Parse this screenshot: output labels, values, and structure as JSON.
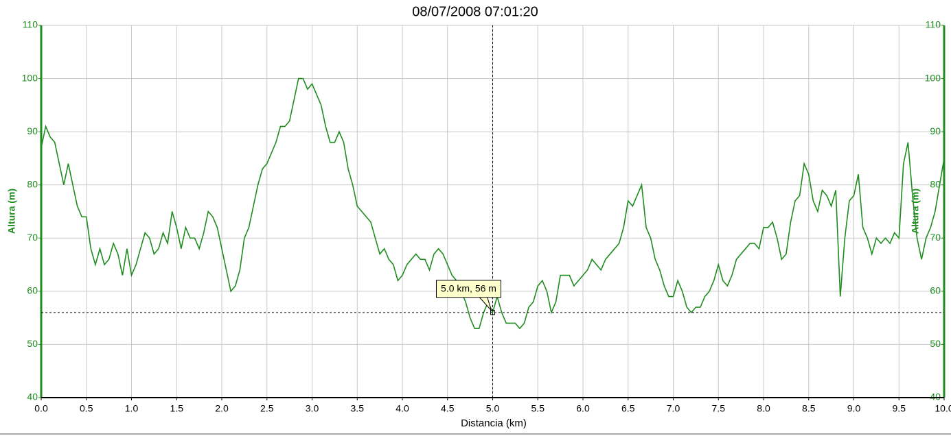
{
  "chart_data": {
    "type": "line",
    "title": "08/07/2008 07:01:20",
    "x_label": "Distancia (km)",
    "y_label": "Altura (m)",
    "y2_label": "Altura (m)",
    "xlim": [
      0,
      10
    ],
    "ylim": [
      40,
      110
    ],
    "y2lim": [
      40,
      110
    ],
    "grid": true,
    "xticks": [
      {
        "value": 0,
        "label": "0.0"
      },
      0.5,
      {
        "value": 1,
        "label": "1.0"
      },
      1.5,
      {
        "value": 2,
        "label": "2.0"
      },
      2.5,
      {
        "value": 3,
        "label": "3.0"
      },
      3.5,
      {
        "value": 4,
        "label": "4.0"
      },
      4.5,
      {
        "value": 5,
        "label": "5.0"
      },
      5.5,
      {
        "value": 6,
        "label": "6.0"
      },
      6.5,
      {
        "value": 7,
        "label": "7.0"
      },
      7.5,
      {
        "value": 8,
        "label": "8.0"
      },
      8.5,
      {
        "value": 9,
        "label": "9.0"
      },
      9.5,
      {
        "value": 10,
        "label": "10.0"
      }
    ],
    "yticks": [
      40,
      50,
      60,
      70,
      80,
      90,
      100,
      110
    ],
    "y2ticks": [
      40,
      50,
      60,
      70,
      80,
      90,
      100,
      110
    ],
    "axis_color": "#1e8c1e",
    "series": [
      {
        "name": "Altura",
        "color": "#1e8c1e",
        "x": [
          0,
          0.05,
          0.1,
          0.15,
          0.2,
          0.25,
          0.3,
          0.35,
          0.4,
          0.45,
          0.5,
          0.55,
          0.6,
          0.65,
          0.7,
          0.75,
          0.8,
          0.85,
          0.9,
          0.95,
          1,
          1.05,
          1.1,
          1.15,
          1.2,
          1.25,
          1.3,
          1.35,
          1.4,
          1.45,
          1.5,
          1.55,
          1.6,
          1.65,
          1.7,
          1.75,
          1.8,
          1.85,
          1.9,
          1.95,
          2,
          2.05,
          2.1,
          2.15,
          2.2,
          2.25,
          2.3,
          2.35,
          2.4,
          2.45,
          2.5,
          2.55,
          2.6,
          2.65,
          2.7,
          2.75,
          2.8,
          2.85,
          2.9,
          2.95,
          3,
          3.05,
          3.1,
          3.15,
          3.2,
          3.25,
          3.3,
          3.35,
          3.4,
          3.45,
          3.5,
          3.55,
          3.6,
          3.65,
          3.7,
          3.75,
          3.8,
          3.85,
          3.9,
          3.95,
          4,
          4.05,
          4.1,
          4.15,
          4.2,
          4.25,
          4.3,
          4.35,
          4.4,
          4.45,
          4.5,
          4.55,
          4.6,
          4.65,
          4.7,
          4.75,
          4.8,
          4.85,
          4.9,
          4.95,
          5,
          5.05,
          5.1,
          5.15,
          5.2,
          5.25,
          5.3,
          5.35,
          5.4,
          5.45,
          5.5,
          5.55,
          5.6,
          5.65,
          5.7,
          5.75,
          5.8,
          5.85,
          5.9,
          5.95,
          6,
          6.05,
          6.1,
          6.15,
          6.2,
          6.25,
          6.3,
          6.35,
          6.4,
          6.45,
          6.5,
          6.55,
          6.6,
          6.65,
          6.7,
          6.75,
          6.8,
          6.85,
          6.9,
          6.95,
          7,
          7.05,
          7.1,
          7.15,
          7.2,
          7.25,
          7.3,
          7.35,
          7.4,
          7.45,
          7.5,
          7.55,
          7.6,
          7.65,
          7.7,
          7.75,
          7.8,
          7.85,
          7.9,
          7.95,
          8,
          8.05,
          8.1,
          8.15,
          8.2,
          8.25,
          8.3,
          8.35,
          8.4,
          8.45,
          8.5,
          8.55,
          8.6,
          8.65,
          8.7,
          8.75,
          8.8,
          8.85,
          8.9,
          8.95,
          9,
          9.05,
          9.1,
          9.15,
          9.2,
          9.25,
          9.3,
          9.35,
          9.4,
          9.45,
          9.5,
          9.55,
          9.6,
          9.65,
          9.7,
          9.75,
          9.8,
          9.85,
          9.9,
          9.95,
          10
        ],
        "values": [
          87,
          91,
          89,
          88,
          84,
          80,
          84,
          80,
          76,
          74,
          74,
          68,
          65,
          68,
          65,
          66,
          69,
          67,
          63,
          68,
          63,
          65,
          68,
          71,
          70,
          67,
          68,
          71,
          69,
          75,
          72,
          68,
          72,
          70,
          70,
          68,
          71,
          75,
          74,
          72,
          68,
          64,
          60,
          61,
          64,
          70,
          72,
          76,
          80,
          83,
          84,
          86,
          88,
          91,
          91,
          92,
          96,
          100,
          100,
          98,
          99,
          97,
          95,
          91,
          88,
          88,
          90,
          88,
          83,
          80,
          76,
          75,
          74,
          73,
          70,
          67,
          68,
          66,
          65,
          62,
          63,
          65,
          66,
          67,
          66,
          66,
          64,
          67,
          68,
          67,
          65,
          63,
          62,
          60,
          58,
          55,
          53,
          53,
          56,
          58,
          56,
          59,
          56,
          54,
          54,
          54,
          53,
          54,
          57,
          58,
          61,
          62,
          60,
          56,
          58,
          63,
          63,
          63,
          61,
          62,
          63,
          64,
          66,
          65,
          64,
          66,
          67,
          68,
          69,
          72,
          77,
          76,
          78,
          80,
          72,
          70,
          66,
          64,
          61,
          59,
          59,
          62,
          60,
          57,
          56,
          57,
          57,
          59,
          60,
          62,
          65,
          62,
          61,
          63,
          66,
          67,
          68,
          69,
          69,
          68,
          72,
          72,
          73,
          70,
          66,
          67,
          73,
          77,
          78,
          84,
          82,
          77,
          75,
          79,
          78,
          76,
          79,
          59,
          70,
          77,
          78,
          82,
          72,
          70,
          67,
          70,
          69,
          70,
          69,
          71,
          70,
          84,
          88,
          78,
          70,
          66,
          70,
          72,
          75,
          80,
          85
        ]
      }
    ],
    "cursor": {
      "x": 5,
      "y": 56,
      "label": "5.0 km, 56 m"
    }
  }
}
